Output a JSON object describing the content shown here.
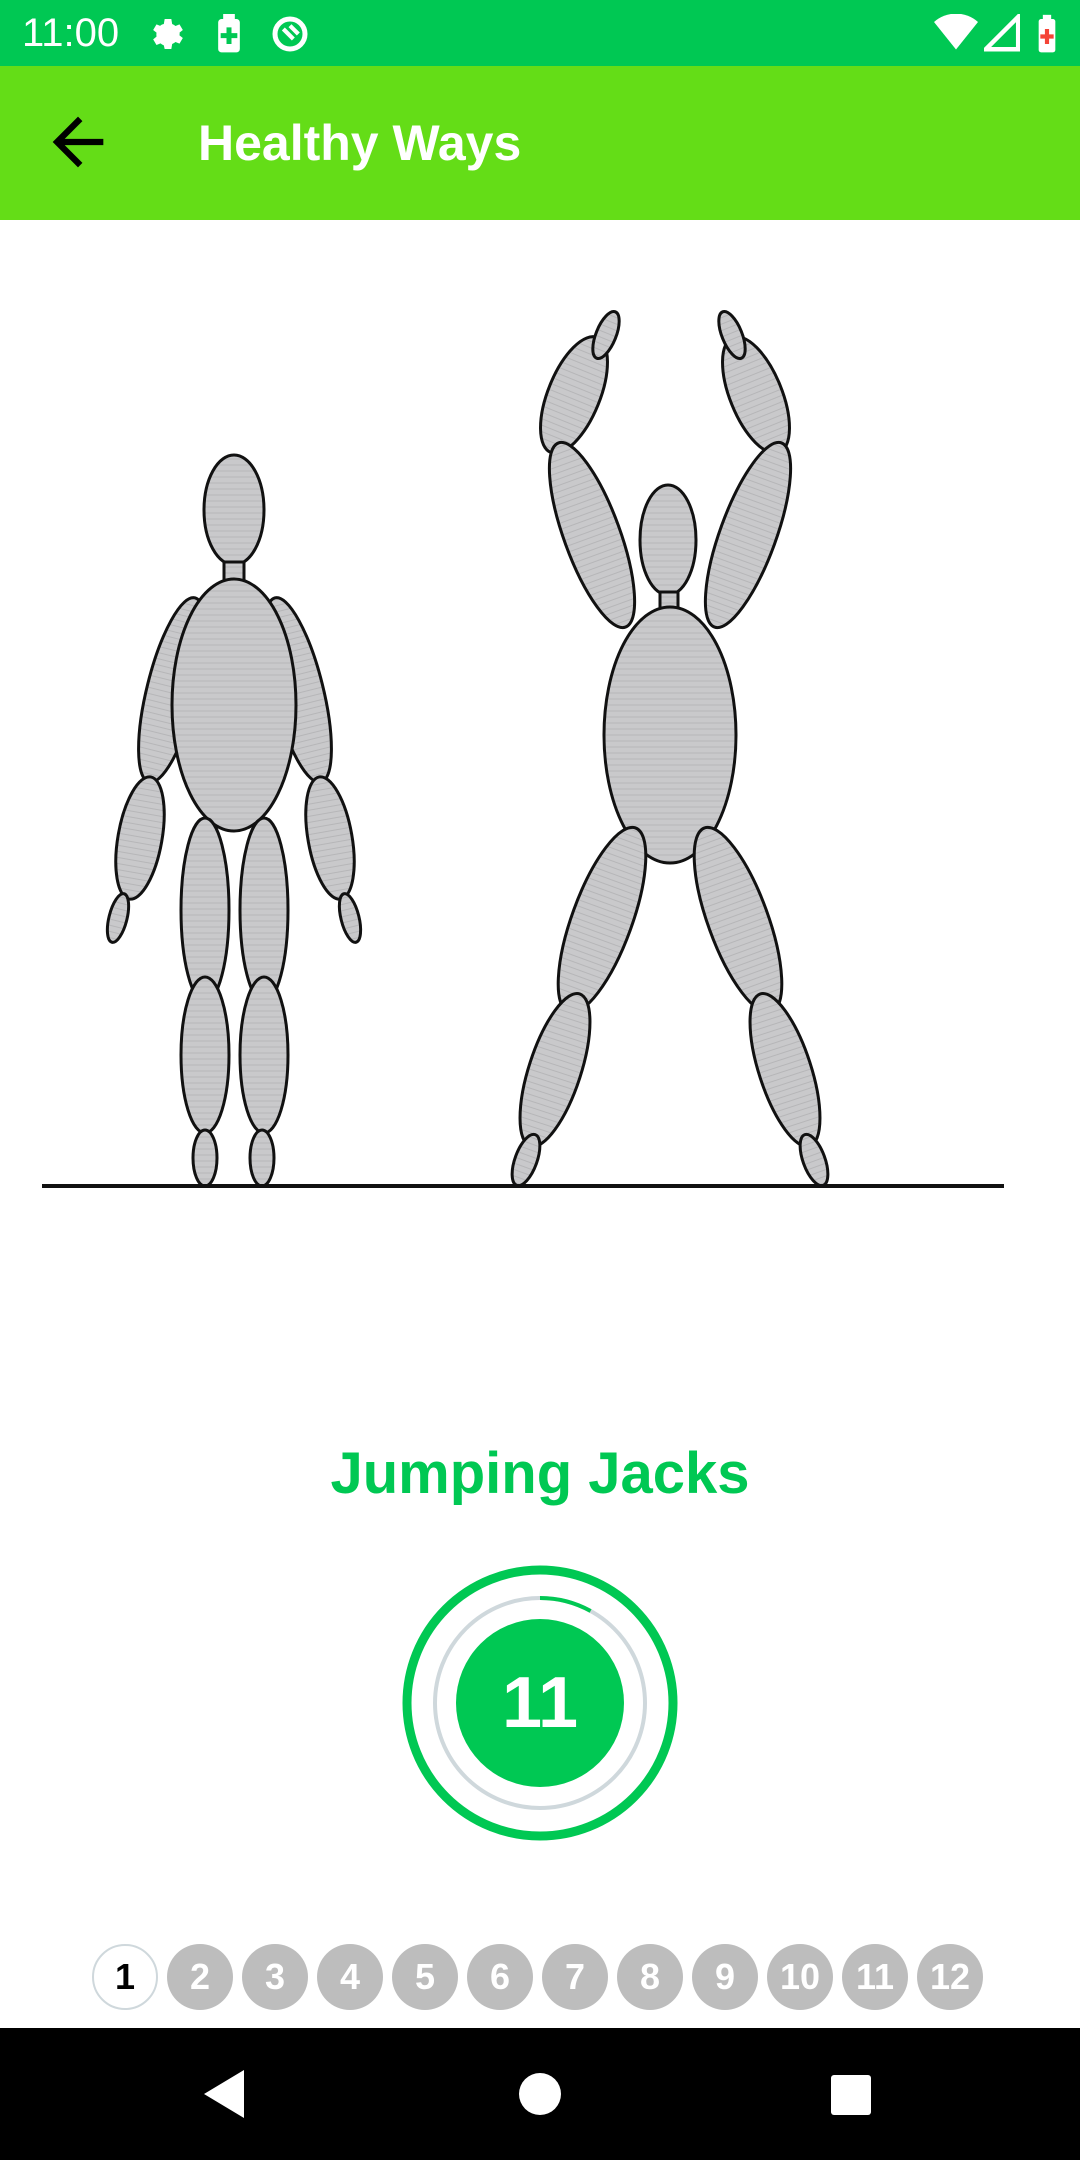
{
  "status_bar": {
    "time": "11:00",
    "icons": [
      "gear-icon",
      "battery-saver-icon",
      "sync-icon",
      "wifi-icon",
      "cell-signal-icon",
      "battery-icon"
    ]
  },
  "app_bar": {
    "title": "Healthy Ways",
    "back_icon": "arrow-left-icon"
  },
  "exercise": {
    "name": "Jumping Jacks",
    "timer_value": "11",
    "timer_progress": 0.08
  },
  "steps": {
    "items": [
      "1",
      "2",
      "3",
      "4",
      "5",
      "6",
      "7",
      "8",
      "9",
      "10",
      "11",
      "12"
    ],
    "active_index": 0
  },
  "nav_bar": {
    "icons": [
      "back-triangle-icon",
      "home-circle-icon",
      "recents-square-icon"
    ]
  },
  "colors": {
    "status_bar": "#00c853",
    "app_bar": "#64dd17",
    "accent": "#00c853",
    "step_inactive": "#bdbdbd"
  }
}
